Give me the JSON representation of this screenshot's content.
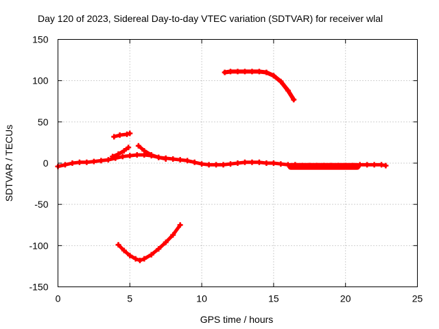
{
  "chart_data": {
    "type": "line",
    "title": "Day 120 of 2023, Sidereal Day-to-day VTEC variation (SDTVAR) for receiver wlal",
    "xlabel": "GPS time / hours",
    "ylabel": "SDTVAR / TECUs",
    "xlim": [
      0,
      25
    ],
    "ylim": [
      -150,
      150
    ],
    "xticks": [
      0,
      5,
      10,
      15,
      20,
      25
    ],
    "yticks": [
      -150,
      -100,
      -50,
      0,
      50,
      100,
      150
    ],
    "grid": true,
    "color": "#ff0000",
    "series": [
      {
        "name": "main-track",
        "x": [
          0,
          0.5,
          1,
          1.5,
          2,
          2.5,
          3,
          3.5,
          4,
          4.5,
          5,
          5.5,
          6,
          6.5,
          7,
          7.5,
          8,
          8.5,
          9,
          9.5,
          10,
          10.5,
          11,
          11.5,
          12,
          12.5,
          13,
          13.5,
          14,
          14.5,
          15,
          15.5,
          16,
          16.5,
          17,
          17.5,
          18,
          18.5,
          19,
          19.5,
          20,
          20.5,
          21,
          21.5,
          22,
          22.5,
          22.8
        ],
        "y": [
          -4,
          -2,
          0,
          1,
          1,
          2,
          3,
          4,
          6,
          8,
          9,
          10,
          10,
          9,
          7,
          6,
          5,
          4,
          3,
          1,
          -1,
          -2,
          -2,
          -2,
          -1,
          0,
          1,
          1,
          1,
          0,
          0,
          -1,
          -2,
          -2,
          -3,
          -3,
          -3,
          -3,
          -3,
          -3,
          -3,
          -3,
          -2,
          -2,
          -2,
          -2,
          -3
        ]
      },
      {
        "name": "thick-band",
        "x": [
          16.2,
          17,
          18,
          19,
          20,
          20.8
        ],
        "y": [
          -4,
          -4,
          -4,
          -4,
          -4,
          -4
        ]
      },
      {
        "name": "rise-near-5",
        "x": [
          3.8,
          4.2,
          4.6,
          4.9
        ],
        "y": [
          8,
          11,
          15,
          19
        ]
      },
      {
        "name": "decay-after-5",
        "x": [
          5.6,
          6,
          6.5,
          7,
          7.5
        ],
        "y": [
          21,
          15,
          10,
          7,
          5
        ]
      },
      {
        "name": "short-segment-35",
        "x": [
          3.9,
          4.3,
          4.8,
          5.0
        ],
        "y": [
          32,
          34,
          35,
          36
        ]
      },
      {
        "name": "high-arc",
        "x": [
          11.6,
          12,
          12.5,
          13,
          13.5,
          14,
          14.5,
          15,
          15.5,
          16,
          16.4
        ],
        "y": [
          110,
          111,
          111,
          111,
          111,
          111,
          110,
          106,
          99,
          88,
          77
        ]
      },
      {
        "name": "low-dip",
        "x": [
          4.2,
          4.6,
          5,
          5.4,
          5.7,
          6,
          6.5,
          7,
          7.5,
          8,
          8.5
        ],
        "y": [
          -99,
          -106,
          -112,
          -116,
          -118,
          -116,
          -111,
          -104,
          -96,
          -87,
          -75
        ]
      }
    ]
  }
}
